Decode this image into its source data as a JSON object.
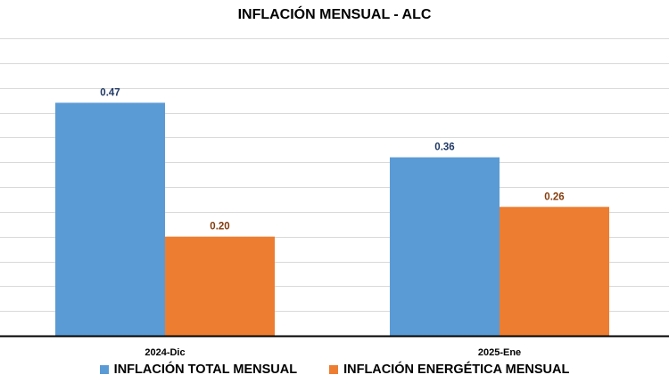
{
  "chart_data": {
    "type": "bar",
    "title": "INFLACIÓN MENSUAL - ALC",
    "categories": [
      "2024-Dic",
      "2025-Ene"
    ],
    "series": [
      {
        "name": "INFLACIÓN TOTAL MENSUAL",
        "values": [
          0.47,
          0.36
        ],
        "color": "#5B9BD5",
        "label_color": "#1F3864"
      },
      {
        "name": "INFLACIÓN ENERGÉTICA MENSUAL",
        "values": [
          0.2,
          0.26
        ],
        "color": "#ED7D31",
        "label_color": "#843C0C"
      }
    ],
    "ylim": [
      0,
      0.6
    ],
    "grid": true,
    "legend": "bottom",
    "xlabel": "",
    "ylabel": ""
  }
}
